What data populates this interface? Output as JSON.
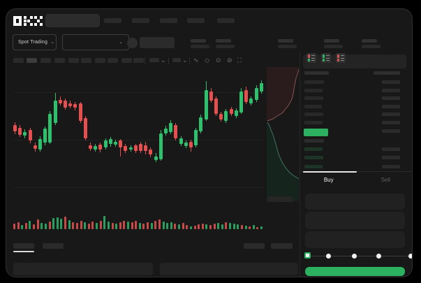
{
  "app": {
    "brand": "OKX",
    "market_selector": "Spot Trading"
  },
  "trade_form": {
    "buy_tab": "Buy",
    "sell_tab": "Sell"
  },
  "colors": {
    "green": "#2bb15f",
    "red": "#dd4b4e",
    "candle_green": "#2ec06c",
    "candle_red": "#e4504f",
    "vol_green": "#2b9e5d",
    "vol_red": "#c64a48",
    "depth_red_line": "#8a5252",
    "depth_red_fill": "#2a1c1c",
    "depth_green_line": "#3f7561",
    "depth_green_fill": "#16241e",
    "bid_row": "#1d3527",
    "bid_row_dim": "#2a2d2b",
    "ask_row": "#282828",
    "size_row": "#2b2b2b"
  },
  "icons": {
    "chevron_down": "⌄",
    "wave": "∿",
    "diamond": "◇",
    "camera": "⊙",
    "crossed_circle": "⊘",
    "fullscreen": "⛶"
  },
  "layout_counts": {
    "nav_items": 5,
    "ticker_stats": 5,
    "timeframes": 10,
    "active_timeframe": 1
  },
  "orderbook": {
    "header_bars": {
      "left_w": 35,
      "right_w": 38
    },
    "ask_rows": [
      {
        "l": 28,
        "r": 26
      },
      {
        "l": 26,
        "r": 26
      },
      {
        "l": 27,
        "r": 26
      },
      {
        "l": 25,
        "r": 26
      },
      {
        "l": 27,
        "r": 26
      },
      {
        "l": 26,
        "r": 26
      }
    ],
    "extra_ask_right_w": 26,
    "bid_rows_left": [
      28,
      26,
      27,
      26
    ],
    "bid_rows_right": [
      26,
      26,
      26
    ]
  },
  "chart_data": {
    "type": "candlestick",
    "title": "",
    "xlabel": "",
    "ylabel": "",
    "grid": true,
    "candles": [
      [
        "r",
        42.6,
        47.2,
        40.5,
        49.0
      ],
      [
        "r",
        44.6,
        49.7,
        42.6,
        51.3
      ],
      [
        "g",
        47.7,
        50.3,
        45.6,
        52.3
      ],
      [
        "r",
        46.2,
        53.8,
        44.6,
        55.9
      ],
      [
        "r",
        57.4,
        60.0,
        55.4,
        62.0
      ],
      [
        "g",
        52.8,
        60.5,
        51.0,
        62.1
      ],
      [
        "g",
        45.1,
        55.4,
        43.6,
        57.4
      ],
      [
        "g",
        34.4,
        55.4,
        32.3,
        56.4
      ],
      [
        "g",
        24.6,
        41.0,
        19.0,
        42.6
      ],
      [
        "r",
        24.1,
        26.7,
        21.5,
        28.2
      ],
      [
        "r",
        24.6,
        29.7,
        23.1,
        31.3
      ],
      [
        "r",
        26.7,
        28.7,
        24.6,
        30.3
      ],
      [
        "r",
        27.2,
        29.7,
        25.6,
        31.8
      ],
      [
        "r",
        26.7,
        39.5,
        25.6,
        41.0
      ],
      [
        "r",
        37.4,
        52.3,
        35.9,
        53.8
      ],
      [
        "r",
        57.4,
        60.0,
        55.4,
        61.5
      ],
      [
        "g",
        57.9,
        60.5,
        56.4,
        62.1
      ],
      [
        "r",
        56.9,
        60.5,
        55.4,
        62.6
      ],
      [
        "g",
        53.8,
        59.0,
        52.3,
        60.5
      ],
      [
        "g",
        52.8,
        56.4,
        51.3,
        58.4
      ],
      [
        "g",
        54.9,
        56.9,
        53.3,
        58.4
      ],
      [
        "r",
        53.8,
        59.0,
        52.8,
        65.6
      ],
      [
        "r",
        57.9,
        61.5,
        56.4,
        63.1
      ],
      [
        "g",
        59.0,
        60.5,
        57.4,
        62.1
      ],
      [
        "r",
        57.4,
        61.5,
        56.4,
        63.1
      ],
      [
        "r",
        56.4,
        61.5,
        54.9,
        63.1
      ],
      [
        "r",
        57.4,
        61.5,
        54.9,
        64.1
      ],
      [
        "r",
        60.5,
        64.1,
        59.0,
        66.2
      ],
      [
        "g",
        65.6,
        68.2,
        63.1,
        69.7
      ],
      [
        "g",
        48.7,
        67.7,
        46.2,
        68.7
      ],
      [
        "g",
        45.1,
        48.7,
        43.1,
        50.3
      ],
      [
        "g",
        41.0,
        47.7,
        39.0,
        49.2
      ],
      [
        "r",
        42.6,
        52.3,
        41.0,
        53.8
      ],
      [
        "g",
        52.3,
        56.4,
        50.8,
        57.9
      ],
      [
        "g",
        55.4,
        57.9,
        53.8,
        59.5
      ],
      [
        "r",
        54.9,
        59.0,
        53.3,
        62.1
      ],
      [
        "g",
        46.2,
        57.4,
        44.6,
        59.0
      ],
      [
        "g",
        36.9,
        47.2,
        34.9,
        48.7
      ],
      [
        "g",
        16.9,
        38.5,
        10.3,
        39.5
      ],
      [
        "r",
        17.9,
        24.6,
        15.4,
        26.2
      ],
      [
        "r",
        23.1,
        34.4,
        21.5,
        35.9
      ],
      [
        "r",
        34.4,
        38.5,
        32.8,
        40.0
      ],
      [
        "g",
        32.3,
        39.5,
        30.8,
        41.0
      ],
      [
        "r",
        30.8,
        34.4,
        29.2,
        35.9
      ],
      [
        "g",
        31.8,
        35.9,
        30.3,
        37.4
      ],
      [
        "g",
        17.9,
        33.3,
        15.4,
        34.4
      ],
      [
        "r",
        16.9,
        25.6,
        14.4,
        27.2
      ],
      [
        "g",
        23.1,
        26.7,
        21.5,
        28.2
      ],
      [
        "g",
        15.4,
        24.1,
        13.3,
        25.6
      ],
      [
        "g",
        11.8,
        17.9,
        9.7,
        19.5
      ]
    ],
    "volume": {
      "heights": [
        8,
        10,
        6,
        9,
        12,
        7,
        14,
        9,
        8,
        11,
        16,
        17,
        15,
        18,
        13,
        10,
        9,
        12,
        10,
        8,
        11,
        9,
        12,
        19,
        11,
        9,
        8,
        10,
        12,
        11,
        10,
        12,
        9,
        8,
        10,
        9,
        12,
        14,
        11,
        9,
        10,
        8,
        7,
        9,
        6,
        4,
        5,
        7,
        8,
        7,
        6,
        8,
        9,
        7,
        10,
        9,
        8,
        7,
        6,
        5,
        4,
        6,
        3,
        4
      ],
      "colors": "rrgrgrrggrgggrgrrrgrrgrggrgrrgrrgrrgrrgggrgrrgrrrgrrggrgggrgrgrg"
    },
    "depth": {
      "ask_line": [
        [
          46,
          3
        ],
        [
          44,
          10
        ],
        [
          42,
          16
        ],
        [
          40,
          26
        ],
        [
          38,
          38
        ],
        [
          36,
          46
        ],
        [
          31,
          55
        ],
        [
          27,
          60
        ],
        [
          22,
          66
        ],
        [
          15,
          70
        ],
        [
          9,
          74
        ],
        [
          4,
          76
        ],
        [
          1,
          77
        ]
      ],
      "bid_line": [
        [
          1,
          79
        ],
        [
          4,
          84
        ],
        [
          7,
          92
        ],
        [
          10,
          100
        ],
        [
          13,
          110
        ],
        [
          15,
          118
        ],
        [
          18,
          127
        ],
        [
          22,
          136
        ],
        [
          27,
          144
        ],
        [
          32,
          150
        ],
        [
          38,
          155
        ],
        [
          43,
          158
        ],
        [
          46,
          160
        ]
      ]
    }
  }
}
